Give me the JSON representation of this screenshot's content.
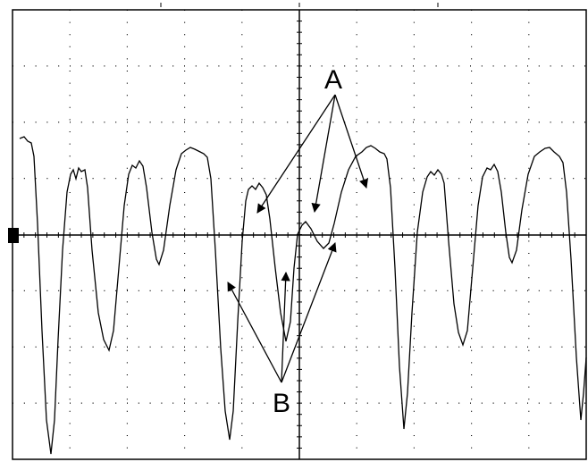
{
  "annotations": [
    {
      "label": "A"
    },
    {
      "label": "B"
    }
  ]
}
